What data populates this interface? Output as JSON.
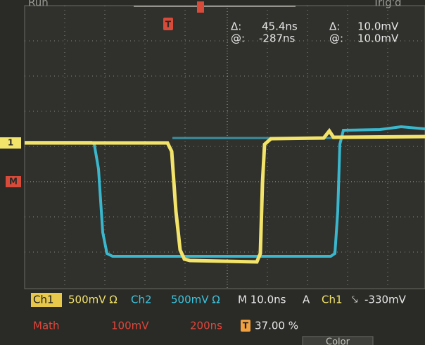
{
  "status": {
    "run": "Run",
    "trigger": "Trig'd"
  },
  "cursor_readout": {
    "delta_time_label": "Δ:",
    "delta_time": "45.4ns",
    "delta_volt_label": "Δ:",
    "delta_volt": "10.0mV",
    "at_time_label": "@:",
    "at_time": "-287ns",
    "at_volt_label": "@:",
    "at_volt": "10.0mV"
  },
  "markers": {
    "trigger": "T",
    "ch1": "1",
    "math": "M"
  },
  "settings": {
    "ch1_label": "Ch1",
    "ch1_scale": "500mV Ω",
    "ch2_label": "Ch2",
    "ch2_scale": "500mV Ω",
    "timebase": "M 10.0ns",
    "trigger_mode": "A",
    "trigger_source": "Ch1",
    "trigger_slope": "⤥",
    "trigger_level": "-330mV",
    "math_label": "Math",
    "math_scale": "100mV",
    "math_timebase": "200ns",
    "trigger_position_icon": "T",
    "trigger_position": "37.00 %"
  },
  "menu": {
    "color_button": "Color"
  }
}
